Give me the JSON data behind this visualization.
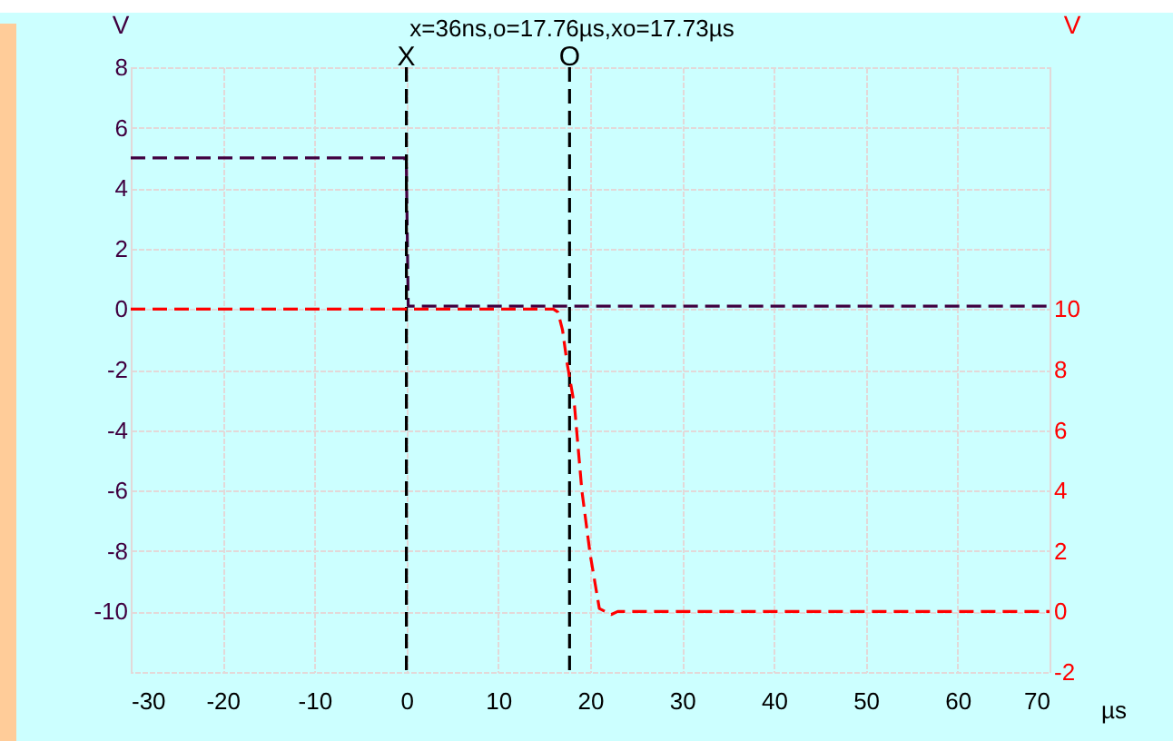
{
  "chart_data": {
    "type": "line",
    "title": "x=36ns,o=17.76µs,xo=17.73µs",
    "xlabel": "µs",
    "ylabel": "V",
    "y2label": "V",
    "xlim": [
      -30,
      70
    ],
    "xticks": [
      -30,
      -20,
      -10,
      0,
      10,
      20,
      30,
      40,
      50,
      60,
      70
    ],
    "ylim": [
      -12,
      8
    ],
    "yticks": [
      -10,
      -8,
      -6,
      -4,
      -2,
      0,
      2,
      4,
      6,
      8
    ],
    "y2lim": [
      -2,
      18
    ],
    "y2ticks": [
      -2,
      0,
      2,
      4,
      6,
      8,
      10
    ],
    "grid": true,
    "line_style": "dashed",
    "series": [
      {
        "color": "#400040",
        "x": [
          -30,
          -0.2,
          0,
          0.2,
          70
        ],
        "values": [
          5,
          5,
          4.7,
          0.1,
          0.1
        ]
      },
      {
        "color": "#ff0000",
        "axis": "y2",
        "x": [
          -30,
          16.0,
          16.5,
          17.0,
          17.5,
          18.3,
          19.1,
          20.0,
          21.0,
          22.3,
          23.0,
          70
        ],
        "values": [
          10,
          10,
          9.9,
          9.3,
          8.2,
          6.8,
          4,
          1.9,
          0.1,
          -0.1,
          0,
          0
        ]
      }
    ],
    "ref_lines": [
      {
        "axis": "x",
        "value": 0,
        "label": "X",
        "color": "#000000",
        "line_style": "dashed"
      },
      {
        "axis": "x",
        "value": 17.76,
        "label": "O",
        "color": "#000000",
        "line_style": "dashed"
      }
    ]
  }
}
